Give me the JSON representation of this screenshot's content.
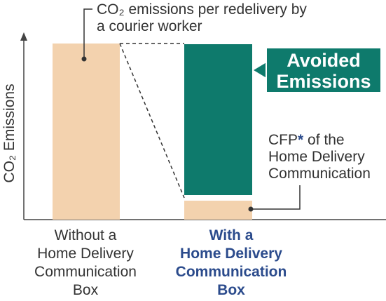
{
  "top_annotation": {
    "lines": [
      "CO₂ emissions per redelivery by",
      "a courier worker"
    ]
  },
  "y_axis_label": "CO₂ Emissions",
  "avoided_label": {
    "lines": [
      "Avoided",
      "Emissions"
    ]
  },
  "cfp_annotation": {
    "prefix": "CFP",
    "asterisk": "*",
    "suffix": " of the",
    "lines": [
      "Home Delivery",
      "Communication"
    ]
  },
  "categories": [
    {
      "lines": [
        "Without a",
        "Home Delivery",
        "Communication",
        "Box"
      ]
    },
    {
      "lines": [
        "With a",
        "Home Delivery",
        "Communication",
        "Box"
      ]
    }
  ]
}
